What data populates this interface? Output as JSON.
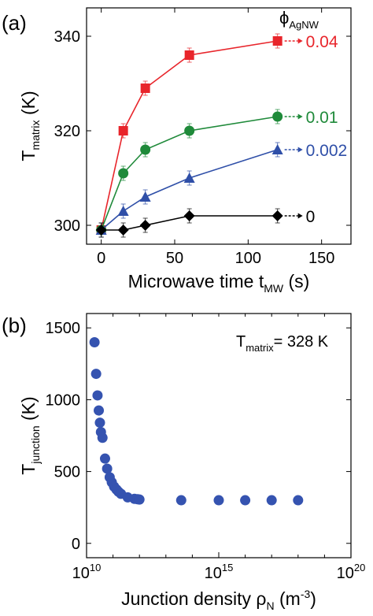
{
  "chart_data": [
    {
      "type": "line",
      "panel_label": "(a)",
      "xlabel": {
        "main": "Microwave time t",
        "sub": "MW",
        "tail": " (s)"
      },
      "ylabel": {
        "main": "T",
        "sub": "matrix",
        "tail": " (K)"
      },
      "xlim": [
        -10,
        170
      ],
      "ylim": [
        296,
        346
      ],
      "xticks": [
        0,
        50,
        100,
        150
      ],
      "yticks": [
        300,
        320,
        340
      ],
      "legend_title": {
        "main": "ϕ",
        "sub": "AgNW"
      },
      "x": [
        0,
        15,
        30,
        60,
        120
      ],
      "series": [
        {
          "name": "0.04",
          "color": "#e8252b",
          "marker": "square",
          "values": [
            299,
            320,
            329,
            336,
            339
          ],
          "errors": [
            1.5,
            1.5,
            1.5,
            1.5,
            1.5
          ]
        },
        {
          "name": "0.01",
          "color": "#1f8a3a",
          "marker": "circle",
          "values": [
            299,
            311,
            316,
            320,
            323
          ],
          "errors": [
            1.5,
            1.5,
            1.5,
            1.5,
            1.5
          ]
        },
        {
          "name": "0.002",
          "color": "#2f4fa8",
          "marker": "triangle",
          "values": [
            299,
            303,
            306,
            310,
            316
          ],
          "errors": [
            1.5,
            1.5,
            1.5,
            1.5,
            1.5
          ]
        },
        {
          "name": "0",
          "color": "#000000",
          "marker": "diamond",
          "values": [
            299,
            299,
            300,
            302,
            302
          ],
          "errors": [
            1.5,
            1.5,
            1.5,
            1.5,
            1.5
          ]
        }
      ]
    },
    {
      "type": "scatter",
      "panel_label": "(b)",
      "xlabel": {
        "main": "Junction density ρ",
        "sub": "N",
        "tail": " (m",
        "sup": "-3",
        "close": ")"
      },
      "ylabel": {
        "main": "T",
        "sub": "junction",
        "tail": " (K)"
      },
      "xscale": "log",
      "xlim": [
        10,
        20
      ],
      "ylim": [
        -100,
        1600
      ],
      "xtick_labels": [
        {
          "exp": 10,
          "base": "10",
          "sup": "10"
        },
        {
          "exp": 15,
          "base": "10",
          "sup": "15"
        },
        {
          "exp": 20,
          "base": "10",
          "sup": "20"
        }
      ],
      "yticks": [
        0,
        500,
        1000,
        1500
      ],
      "annotation": {
        "main": "T",
        "sub": "matrix",
        "tail": "= 328 K"
      },
      "color": "#3553b0",
      "points": [
        {
          "x": 20000000000.0,
          "y": 1400
        },
        {
          "x": 23000000000.0,
          "y": 1180
        },
        {
          "x": 26000000000.0,
          "y": 1030
        },
        {
          "x": 29000000000.0,
          "y": 925
        },
        {
          "x": 32000000000.0,
          "y": 840
        },
        {
          "x": 35000000000.0,
          "y": 775
        },
        {
          "x": 40000000000.0,
          "y": 735
        },
        {
          "x": 50000000000.0,
          "y": 590
        },
        {
          "x": 60000000000.0,
          "y": 520
        },
        {
          "x": 75000000000.0,
          "y": 460
        },
        {
          "x": 90000000000.0,
          "y": 425
        },
        {
          "x": 110000000000.0,
          "y": 395
        },
        {
          "x": 135000000000.0,
          "y": 375
        },
        {
          "x": 160000000000.0,
          "y": 360
        },
        {
          "x": 200000000000.0,
          "y": 345
        },
        {
          "x": 360000000000.0,
          "y": 320
        },
        {
          "x": 650000000000.0,
          "y": 310
        },
        {
          "x": 850000000000.0,
          "y": 307
        },
        {
          "x": 1000000000000.0,
          "y": 305
        },
        {
          "x": 38000000000000.0,
          "y": 300
        },
        {
          "x": 1000000000000000.0,
          "y": 300
        },
        {
          "x": 1e+16,
          "y": 300
        },
        {
          "x": 1e+17,
          "y": 300
        },
        {
          "x": 1e+18,
          "y": 300
        }
      ]
    }
  ]
}
